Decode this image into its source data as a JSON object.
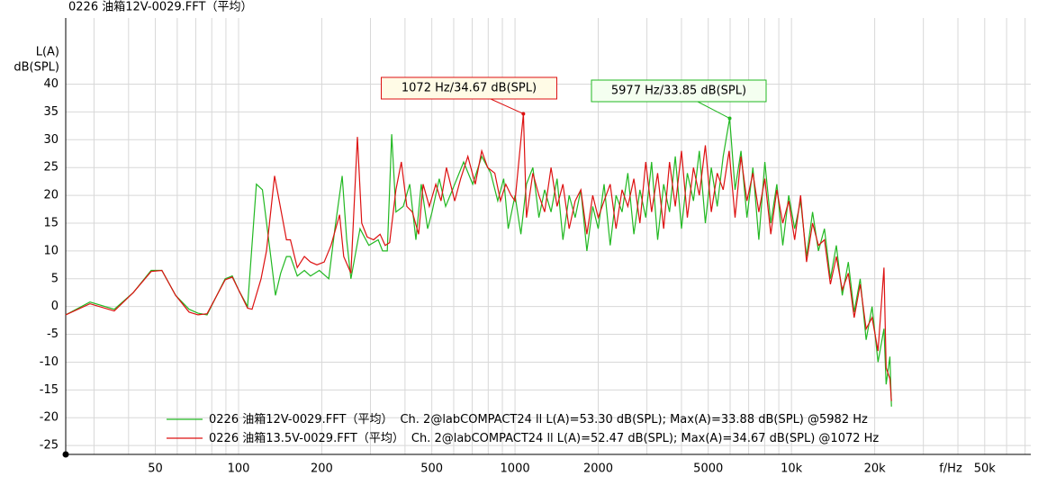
{
  "chart_data": {
    "type": "line",
    "title": "0226 油箱12V-0029.FFT（平均）",
    "ylabel": [
      "L(A)",
      "dB(SPL)"
    ],
    "xlabel": "f/Hz",
    "xscale": "log",
    "grid": true,
    "xlim": [
      23.7,
      73400
    ],
    "ylim": [
      -26.6,
      51.9
    ],
    "xticks": [
      50,
      100,
      200,
      500,
      1000,
      2000,
      5000,
      {
        "value": 10000,
        "label": "10k"
      },
      {
        "value": 20000,
        "label": "20k"
      },
      {
        "value": 50000,
        "label": "50k"
      }
    ],
    "xminorticks": [
      30,
      40,
      60,
      70,
      80,
      90,
      300,
      400,
      600,
      700,
      800,
      900,
      3000,
      4000,
      6000,
      7000,
      8000,
      9000,
      30000,
      40000,
      60000,
      70000
    ],
    "yticks": [
      -25,
      -20,
      -15,
      -10,
      -5,
      0,
      5,
      10,
      15,
      20,
      25,
      30,
      35,
      40
    ],
    "series": [
      {
        "name": "0226 油箱12V-0029.FFT（平均）",
        "info": "Ch. 2@labCOMPACT24 ll L(A)=53.30 dB(SPL);  Max(A)=33.88 dB(SPL) @5982 Hz",
        "color": "#22b822",
        "x": [
          23.7,
          29.0,
          35.5,
          41.6,
          48.3,
          52.8,
          59.2,
          66.2,
          71.3,
          76.9,
          89.4,
          94.9,
          100,
          107.8,
          116,
          122,
          130,
          136,
          142,
          149,
          154,
          163,
          173,
          182,
          196,
          212,
          223,
          237,
          246,
          255,
          275,
          296,
          320,
          332,
          345,
          358,
          371,
          394,
          416,
          438,
          458,
          483,
          501,
          532,
          561,
          605,
          652,
          703,
          758,
          817,
          866,
          910,
          945,
          1000,
          1050,
          1100,
          1160,
          1220,
          1280,
          1350,
          1420,
          1490,
          1570,
          1650,
          1730,
          1820,
          1910,
          2000,
          2100,
          2210,
          2320,
          2440,
          2560,
          2690,
          2830,
          2970,
          3120,
          3280,
          3450,
          3620,
          3800,
          4000,
          4200,
          4420,
          4640,
          4880,
          5130,
          5390,
          5660,
          5977,
          6250,
          6570,
          6900,
          7250,
          7620,
          8010,
          8420,
          8850,
          9300,
          9770,
          10270,
          10790,
          11340,
          11920,
          12520,
          13160,
          13830,
          14530,
          15270,
          16050,
          16860,
          17720,
          18620,
          19570,
          20560,
          21610,
          22000,
          22710,
          23000
        ],
        "values": [
          -1.5,
          0.8,
          -0.5,
          2.5,
          6.5,
          6.5,
          2,
          -0.5,
          -1.2,
          -1.5,
          5,
          5.5,
          3,
          0,
          22,
          21,
          10,
          2,
          6,
          9,
          9,
          5.5,
          6.5,
          5.5,
          6.5,
          5,
          14,
          23.5,
          12,
          5,
          14,
          11,
          12,
          10,
          10,
          31,
          17,
          18,
          22,
          12,
          22,
          14,
          17,
          23,
          18,
          22,
          26,
          22,
          27,
          24,
          19,
          23,
          14,
          20,
          13,
          22,
          25,
          16,
          21,
          17,
          23,
          12,
          20,
          16,
          21,
          10,
          18,
          14,
          22,
          11,
          20,
          17,
          24,
          13,
          21,
          16,
          26,
          12,
          22,
          17,
          27,
          14,
          24,
          19,
          28,
          15,
          25,
          18,
          27,
          33.85,
          21,
          28,
          16,
          25,
          12,
          26,
          15,
          22,
          11,
          20,
          14,
          19,
          9,
          17,
          10,
          14,
          5,
          11,
          2,
          8,
          -1,
          5,
          -6,
          0,
          -10,
          -4,
          -14,
          -9,
          -18
        ]
      },
      {
        "name": "0226 油箱13.5V-0029.FFT（平均）",
        "info": "Ch. 2@labCOMPACT24 ll L(A)=52.47 dB(SPL);  Max(A)=34.67 dB(SPL) @1072 Hz",
        "color": "#dd1111",
        "x": [
          23.7,
          29.0,
          35.5,
          41.6,
          48.3,
          52.8,
          59.2,
          66.2,
          71.3,
          76.9,
          89.4,
          94.9,
          100,
          107.8,
          111.9,
          120.6,
          126.2,
          135,
          149,
          154,
          163,
          173,
          182,
          192,
          204,
          216,
          232,
          240,
          255,
          269,
          279,
          292,
          308,
          325,
          339,
          352,
          371,
          388,
          406,
          425,
          448,
          465,
          490,
          517,
          540,
          565,
          605,
          636,
          675,
          718,
          758,
          796,
          845,
          886,
          926,
          968,
          1000,
          1072,
          1100,
          1160,
          1220,
          1280,
          1350,
          1420,
          1490,
          1570,
          1650,
          1730,
          1820,
          1910,
          2000,
          2100,
          2210,
          2320,
          2440,
          2560,
          2690,
          2830,
          2970,
          3120,
          3280,
          3450,
          3620,
          3800,
          4000,
          4200,
          4420,
          4640,
          4880,
          5130,
          5390,
          5660,
          5950,
          6250,
          6570,
          6900,
          7250,
          7620,
          8010,
          8420,
          8850,
          9300,
          9770,
          10270,
          10790,
          11340,
          11920,
          12520,
          13160,
          13830,
          14530,
          15270,
          16050,
          16860,
          17720,
          18620,
          19570,
          20560,
          21610,
          22000,
          22710,
          23000
        ],
        "values": [
          -1.5,
          0.5,
          -0.8,
          2.5,
          6.3,
          6.5,
          2,
          -1,
          -1.5,
          -1.3,
          4.8,
          5.3,
          3,
          -0.3,
          -0.5,
          5,
          10,
          23.5,
          12,
          12,
          7,
          9,
          8,
          7.5,
          8,
          11,
          16.5,
          9,
          6,
          30.5,
          15,
          12.5,
          12,
          13,
          11,
          11.5,
          21,
          26,
          18,
          17,
          13,
          22,
          18,
          22,
          19,
          25,
          19,
          23,
          27,
          22,
          28,
          25,
          24,
          19,
          22,
          20,
          19,
          34.67,
          16,
          24,
          20,
          17,
          25,
          18,
          22,
          14,
          19,
          21,
          13,
          20,
          16,
          19,
          22,
          14,
          21,
          18,
          23,
          15,
          26,
          17,
          24,
          14,
          26,
          18,
          28,
          16,
          25,
          20,
          29,
          17,
          24,
          21,
          28,
          16,
          27,
          19,
          24,
          17,
          23,
          13,
          21,
          15,
          19,
          12,
          20,
          8,
          15,
          11,
          12,
          4,
          9,
          3,
          6,
          -2,
          4,
          -4,
          -2,
          -8,
          7,
          -11,
          -13,
          -17
        ]
      }
    ],
    "annotations": [
      {
        "text": "1072 Hz/34.67 dB(SPL)",
        "x": 1072,
        "y": 34.67,
        "color": "#dd1111",
        "background": "#fffbe6"
      },
      {
        "text": "5977 Hz/33.85 dB(SPL)",
        "x": 5977,
        "y": 33.85,
        "color": "#22b822",
        "background": "#f4fff0"
      }
    ]
  }
}
